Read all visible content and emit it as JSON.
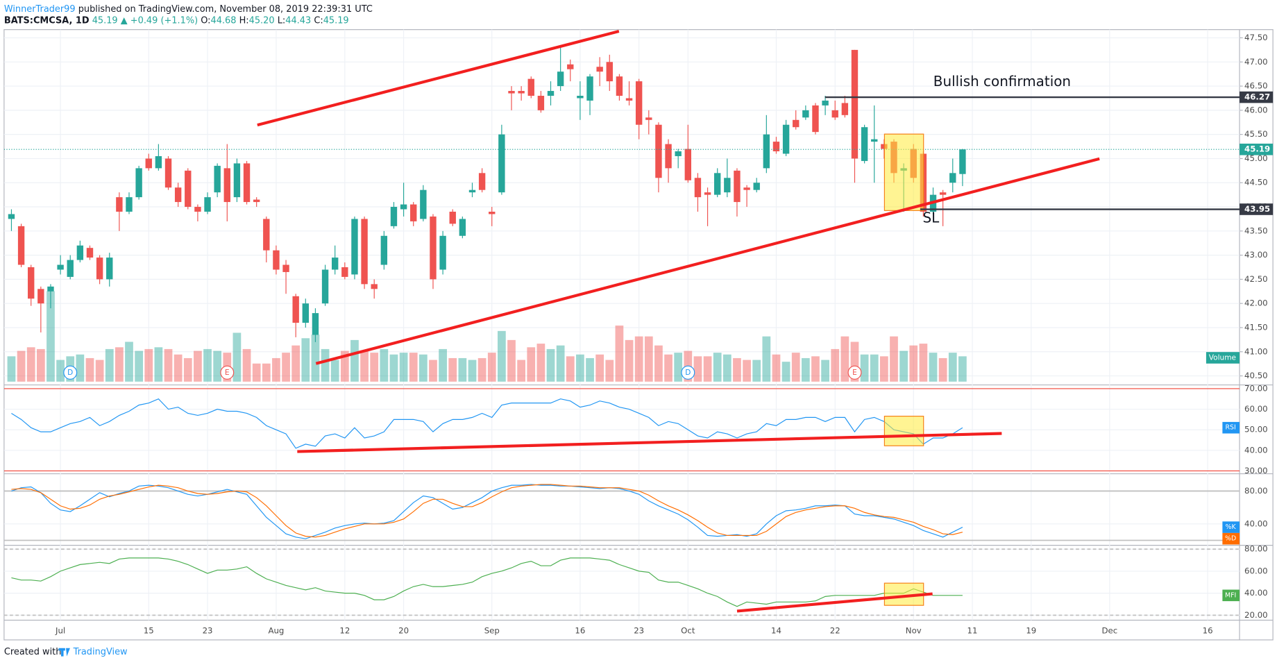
{
  "header": {
    "author": "WinnerTrader99",
    "published": "published on TradingView.com, November 08, 2019 22:39:31 UTC",
    "symbol": "BATS:CMCSA, 1D",
    "price": "45.19",
    "change": "+0.49 (+1.1%)",
    "o": "O:",
    "ov": "44.68",
    "h": "H:",
    "hv": "45.20",
    "l": "L:",
    "lv": "44.43",
    "c": "C:",
    "cv": "45.19"
  },
  "footer": {
    "created": "Created with",
    "brand": "TradingView"
  },
  "annotations": {
    "bullish": "Bullish confirmation",
    "sl": "SL",
    "volume": "Volume"
  },
  "chart_data": {
    "type": "candlestick",
    "xlim": [
      -0.75,
      125.25
    ],
    "xticks": [
      {
        "value": 5,
        "label": "Jul"
      },
      {
        "value": 14,
        "label": "15"
      },
      {
        "value": 20,
        "label": "23"
      },
      {
        "value": 27,
        "label": "Aug"
      },
      {
        "value": 34,
        "label": "12"
      },
      {
        "value": 40,
        "label": "20"
      },
      {
        "value": 49,
        "label": "Sep"
      },
      {
        "value": 58,
        "label": "16"
      },
      {
        "value": 64,
        "label": "23"
      },
      {
        "value": 69,
        "label": "Oct"
      },
      {
        "value": 78,
        "label": "14"
      },
      {
        "value": 84,
        "label": "22"
      },
      {
        "value": 92,
        "label": "Nov"
      },
      {
        "value": 98,
        "label": "11"
      },
      {
        "value": 104,
        "label": "19"
      },
      {
        "value": 112,
        "label": "Dec"
      },
      {
        "value": 122,
        "label": "16"
      }
    ],
    "ylim": [
      40.33,
      47.67
    ],
    "yticks": [
      {
        "value": 40.5,
        "label": "40.50"
      },
      {
        "value": 41,
        "label": "41.00"
      },
      {
        "value": 41.5,
        "label": "41.50"
      },
      {
        "value": 42,
        "label": "42.00"
      },
      {
        "value": 42.5,
        "label": "42.50"
      },
      {
        "value": 43,
        "label": "43.00"
      },
      {
        "value": 43.5,
        "label": "43.50"
      },
      {
        "value": 44,
        "label": "44.00"
      },
      {
        "value": 44.5,
        "label": "44.50"
      },
      {
        "value": 45,
        "label": "45.00"
      },
      {
        "value": 45.5,
        "label": "45.50"
      },
      {
        "value": 46,
        "label": "46.00"
      },
      {
        "value": 46.5,
        "label": "46.50"
      },
      {
        "value": 47,
        "label": "47.00"
      },
      {
        "value": 47.5,
        "label": "47.50"
      }
    ],
    "grid": true,
    "up_color": "#26a69a",
    "down_color": "#ef5350",
    "levels": [
      46.27,
      43.95
    ],
    "open": [
      43.75,
      43.6,
      42.75,
      42.3,
      42.25,
      42.7,
      42.55,
      42.9,
      43.15,
      42.95,
      42.5,
      44.2,
      43.9,
      44.2,
      45.0,
      44.8,
      45.0,
      44.4,
      44.75,
      44.0,
      43.9,
      44.3,
      44.8,
      44.2,
      44.9,
      44.15,
      43.75,
      43.1,
      42.8,
      42.15,
      41.6,
      41.35,
      42.0,
      42.7,
      42.75,
      42.6,
      43.75,
      42.4,
      42.8,
      43.6,
      43.95,
      44.05,
      43.75,
      43.8,
      42.7,
      43.9,
      43.4,
      44.3,
      44.7,
      43.9,
      44.3,
      46.4,
      46.4,
      46.65,
      46.3,
      46.3,
      46.5,
      46.95,
      46.25,
      46.2,
      46.9,
      47.0,
      46.7,
      46.25,
      46.6,
      45.85,
      45.7,
      45.3,
      45.05,
      45.2,
      44.6,
      44.3,
      44.25,
      44.3,
      44.75,
      44.4,
      44.35,
      44.8,
      45.35,
      45.1,
      45.8,
      45.85,
      46.1,
      46.1,
      46.0,
      46.15,
      47.25,
      44.95,
      45.35,
      45.3,
      45.35,
      44.75,
      45.2,
      45.1,
      43.9,
      44.3,
      44.5,
      44.68
    ],
    "high": [
      43.95,
      43.65,
      42.8,
      42.35,
      42.4,
      43.0,
      43.0,
      43.3,
      43.2,
      43.0,
      43.05,
      44.3,
      44.3,
      44.85,
      45.1,
      45.3,
      45.05,
      44.5,
      44.8,
      44.05,
      44.3,
      44.9,
      45.3,
      45.0,
      44.95,
      44.2,
      43.8,
      43.2,
      42.9,
      42.2,
      42.1,
      41.9,
      42.8,
      43.2,
      42.85,
      43.8,
      43.8,
      42.5,
      43.5,
      44.1,
      44.5,
      44.1,
      44.45,
      43.85,
      43.5,
      43.95,
      43.8,
      44.5,
      44.8,
      44.0,
      45.7,
      46.5,
      46.5,
      46.7,
      46.4,
      46.6,
      47.3,
      47.05,
      46.6,
      46.75,
      47.1,
      47.15,
      46.75,
      46.6,
      46.65,
      46.0,
      45.75,
      45.4,
      45.2,
      45.7,
      44.7,
      44.4,
      44.8,
      45.0,
      44.8,
      44.45,
      44.6,
      45.9,
      45.45,
      45.8,
      46.0,
      46.1,
      46.15,
      46.3,
      46.2,
      46.3,
      47.25,
      45.7,
      46.1,
      45.4,
      45.4,
      44.9,
      45.3,
      45.15,
      44.4,
      44.35,
      45.0,
      45.2
    ],
    "low": [
      43.5,
      42.75,
      41.95,
      41.4,
      41.9,
      42.6,
      42.5,
      42.85,
      42.9,
      42.4,
      42.35,
      43.5,
      43.85,
      44.15,
      44.75,
      44.75,
      44.35,
      44.0,
      43.95,
      43.7,
      43.85,
      44.2,
      43.7,
      44.1,
      44.05,
      44.0,
      42.85,
      42.6,
      42.2,
      41.3,
      41.5,
      41.2,
      41.95,
      42.6,
      42.5,
      42.5,
      42.3,
      42.1,
      42.7,
      43.55,
      43.8,
      43.6,
      43.7,
      42.3,
      42.6,
      43.6,
      43.35,
      44.2,
      44.3,
      43.6,
      44.25,
      46.0,
      46.2,
      46.25,
      45.95,
      46.1,
      46.4,
      46.6,
      45.8,
      45.9,
      46.5,
      46.4,
      46.2,
      46.1,
      45.4,
      45.5,
      44.3,
      44.5,
      44.8,
      44.5,
      43.9,
      43.6,
      44.2,
      44.2,
      43.8,
      44.0,
      44.3,
      44.7,
      45.1,
      45.05,
      45.6,
      45.8,
      45.5,
      45.9,
      45.8,
      45.85,
      44.5,
      44.9,
      44.5,
      45.0,
      44.5,
      43.9,
      44.5,
      43.8,
      43.85,
      43.6,
      44.3,
      44.43
    ],
    "close": [
      43.85,
      42.8,
      42.1,
      42.0,
      42.35,
      42.8,
      42.9,
      43.2,
      42.95,
      42.5,
      42.95,
      43.9,
      44.2,
      44.8,
      44.8,
      45.05,
      44.4,
      44.1,
      44.0,
      43.9,
      44.2,
      44.85,
      44.1,
      44.9,
      44.1,
      44.1,
      43.1,
      42.7,
      42.65,
      41.6,
      42.0,
      41.8,
      42.7,
      42.95,
      42.55,
      43.75,
      42.4,
      42.3,
      43.4,
      44.0,
      44.05,
      43.7,
      44.35,
      42.5,
      43.4,
      43.65,
      43.75,
      44.35,
      44.35,
      43.85,
      45.5,
      46.35,
      46.35,
      46.3,
      46.0,
      46.4,
      46.8,
      46.85,
      46.3,
      46.7,
      46.8,
      46.6,
      46.3,
      46.2,
      45.7,
      45.8,
      44.6,
      44.8,
      45.15,
      44.55,
      44.2,
      44.25,
      44.7,
      44.6,
      44.1,
      44.35,
      44.5,
      45.5,
      45.15,
      45.7,
      45.65,
      46.0,
      45.55,
      46.2,
      45.85,
      45.9,
      45.0,
      45.65,
      45.4,
      45.2,
      44.7,
      44.8,
      44.6,
      43.9,
      44.25,
      44.25,
      44.7,
      45.19
    ],
    "volume": [
      14,
      17,
      19,
      18,
      50,
      12,
      14,
      15,
      13,
      12,
      18,
      19,
      22,
      17,
      18,
      19,
      18,
      15,
      13,
      17,
      18,
      17,
      16,
      27,
      18,
      10,
      10,
      13,
      16,
      20,
      24,
      26,
      18,
      12,
      17,
      23,
      17,
      16,
      18,
      15,
      16,
      16,
      15,
      12,
      18,
      13,
      13,
      12,
      13,
      16,
      28,
      23,
      12,
      19,
      21,
      18,
      20,
      14,
      15,
      13,
      15,
      12,
      31,
      23,
      25,
      25,
      20,
      15,
      16,
      17,
      14,
      14,
      16,
      15,
      13,
      12,
      12,
      25,
      15,
      11,
      16,
      13,
      14,
      12,
      18,
      25,
      22,
      15,
      15,
      14,
      25,
      17,
      20,
      21,
      16,
      13,
      16,
      14
    ],
    "events": [
      {
        "label": "D",
        "x": 6
      },
      {
        "label": "E",
        "x": 22
      },
      {
        "label": "D",
        "x": 69
      },
      {
        "label": "E",
        "x": 86
      }
    ],
    "indicators": [
      {
        "ylim": [
          29,
          71
        ],
        "yticks": [
          {
            "value": 30,
            "label": "30.00"
          },
          {
            "value": 40,
            "label": "40.00"
          },
          {
            "value": 50,
            "label": "50.00"
          },
          {
            "value": 60,
            "label": "60.00"
          },
          {
            "value": 70,
            "label": "70.00"
          }
        ],
        "bands": [
          70,
          30
        ],
        "series": [
          {
            "name": "RSI",
            "color": "#2196f3",
            "values": [
              58,
              55,
              51,
              49,
              49,
              51,
              53,
              54,
              56,
              52,
              54,
              57,
              59,
              62,
              63,
              65,
              60,
              61,
              58,
              57,
              58,
              60,
              59,
              59,
              58,
              56,
              52,
              50,
              48,
              41,
              43,
              42,
              47,
              48,
              46,
              51,
              46,
              47,
              49,
              55,
              55,
              55,
              54,
              49,
              53,
              55,
              55,
              56,
              58,
              56,
              62,
              63,
              63,
              63,
              63,
              63,
              65,
              64,
              61,
              62,
              64,
              63,
              61,
              60,
              58,
              56,
              52,
              54,
              53,
              50,
              47,
              46,
              49,
              48,
              46,
              48,
              49,
              53,
              52,
              55,
              55,
              56,
              56,
              54,
              56,
              56,
              49,
              55,
              56,
              54,
              50,
              49,
              48,
              43,
              46,
              46,
              48,
              51
            ]
          }
        ]
      },
      {
        "ylim": [
          15,
          100
        ],
        "yticks": [
          {
            "value": 40,
            "label": "40.00"
          },
          {
            "value": 80,
            "label": "80.00"
          }
        ],
        "bands": [
          80,
          20
        ],
        "series": [
          {
            "name": "%K",
            "color": "#2196f3",
            "values": [
              80,
              84,
              85,
              78,
              65,
              57,
              55,
              62,
              70,
              78,
              73,
              77,
              80,
              86,
              87,
              86,
              84,
              80,
              76,
              74,
              76,
              79,
              82,
              79,
              76,
              62,
              48,
              38,
              28,
              24,
              22,
              26,
              30,
              35,
              38,
              40,
              41,
              40,
              41,
              44,
              55,
              66,
              74,
              72,
              65,
              58,
              60,
              66,
              72,
              80,
              84,
              87,
              87,
              88,
              87,
              87,
              86,
              86,
              85,
              84,
              83,
              84,
              83,
              80,
              76,
              68,
              62,
              57,
              52,
              45,
              36,
              26,
              25,
              26,
              27,
              25,
              28,
              40,
              50,
              56,
              57,
              59,
              62,
              62,
              63,
              62,
              52,
              50,
              50,
              48,
              46,
              42,
              38,
              32,
              28,
              24,
              30,
              36
            ]
          },
          {
            "name": "%D",
            "color": "#ff6d00",
            "values": [
              82,
              83,
              82,
              78,
              70,
              62,
              58,
              59,
              63,
              70,
              74,
              76,
              79,
              82,
              85,
              87,
              86,
              84,
              80,
              77,
              76,
              77,
              79,
              80,
              79,
              72,
              62,
              50,
              38,
              29,
              25,
              24,
              26,
              30,
              34,
              37,
              40,
              40,
              40,
              42,
              46,
              55,
              65,
              70,
              70,
              65,
              61,
              61,
              66,
              73,
              79,
              84,
              86,
              87,
              88,
              88,
              87,
              86,
              86,
              85,
              84,
              84,
              84,
              82,
              80,
              75,
              68,
              62,
              57,
              51,
              44,
              36,
              29,
              26,
              26,
              26,
              26,
              31,
              40,
              49,
              54,
              57,
              59,
              61,
              62,
              62,
              59,
              54,
              51,
              49,
              48,
              45,
              42,
              37,
              33,
              28,
              27,
              30
            ]
          }
        ]
      },
      {
        "ylim": [
          17,
          82
        ],
        "yticks": [
          {
            "value": 20,
            "label": "20.00"
          },
          {
            "value": 40,
            "label": "40.00"
          },
          {
            "value": 60,
            "label": "60.00"
          },
          {
            "value": 80,
            "label": "80.00"
          }
        ],
        "bands": [
          80,
          20
        ],
        "series": [
          {
            "name": "MFI",
            "color": "#4caf50",
            "values": [
              54,
              52,
              52,
              51,
              55,
              60,
              63,
              66,
              67,
              68,
              67,
              71,
              72,
              72,
              72,
              72,
              71,
              69,
              66,
              62,
              58,
              61,
              61,
              62,
              64,
              58,
              53,
              50,
              47,
              45,
              43,
              45,
              42,
              41,
              40,
              40,
              38,
              34,
              34,
              37,
              42,
              46,
              48,
              46,
              46,
              47,
              48,
              50,
              55,
              58,
              60,
              63,
              67,
              69,
              65,
              65,
              70,
              72,
              72,
              72,
              71,
              70,
              66,
              63,
              60,
              59,
              52,
              50,
              50,
              47,
              44,
              40,
              37,
              32,
              28,
              32,
              31,
              30,
              32,
              32,
              32,
              32,
              33,
              37,
              38,
              38,
              38,
              38,
              38,
              40,
              40,
              40,
              44,
              41,
              38,
              38,
              38,
              38
            ]
          }
        ]
      }
    ]
  }
}
